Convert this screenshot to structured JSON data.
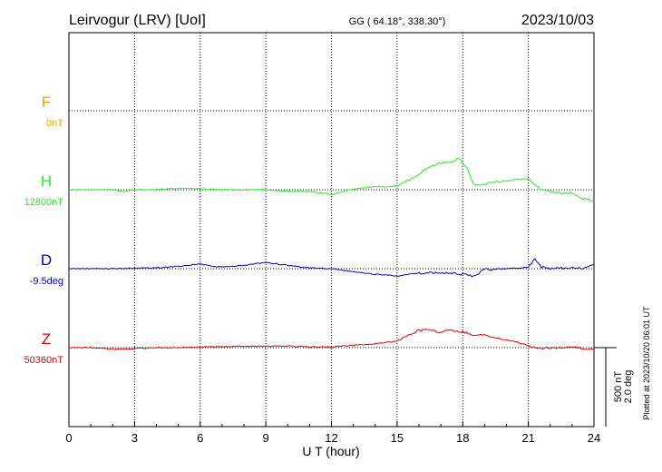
{
  "header": {
    "station": "Leirvogur (LRV)  [UoI]",
    "coords": "GG ( 64.18°, 338.30°)",
    "date": "2023/10/03"
  },
  "footer": {
    "plotted": "Plotted at 2023/10/20 06:01 UT"
  },
  "scale": {
    "nt": "500 nT",
    "deg": "2.0 deg"
  },
  "chart_data": {
    "type": "line",
    "xlabel": "U T (hour)",
    "ylabel": "",
    "xlim": [
      0,
      24
    ],
    "x_ticks": [
      "0",
      "3",
      "6",
      "9",
      "12",
      "15",
      "18",
      "21",
      "24"
    ],
    "grid": true,
    "scale_bar_nT": 500,
    "scale_bar_deg": 2.0,
    "series": [
      {
        "name": "F",
        "baseline_label": "0nT",
        "color": "#f0a000",
        "x": [],
        "values": []
      },
      {
        "name": "H",
        "baseline_label": "12800nT",
        "color": "#22ee22",
        "x": [
          0,
          1,
          2,
          2.5,
          3,
          4,
          5,
          6,
          7,
          8,
          9,
          10,
          11,
          12,
          13,
          14,
          14.5,
          15,
          15.5,
          16,
          16.5,
          17,
          17.5,
          17.8,
          18.2,
          18.5,
          19,
          19.5,
          20,
          20.5,
          21,
          21.3,
          21.6,
          22,
          22.5,
          23,
          23.5,
          24
        ],
        "values": [
          0,
          0,
          0,
          -10,
          0,
          0,
          10,
          5,
          0,
          0,
          0,
          -10,
          -10,
          -30,
          5,
          20,
          15,
          25,
          60,
          100,
          150,
          170,
          170,
          200,
          140,
          30,
          35,
          50,
          55,
          65,
          70,
          30,
          0,
          -10,
          -20,
          -20,
          -60,
          -70
        ]
      },
      {
        "name": "D",
        "baseline_label": "-9.5deg",
        "color": "#0000d0",
        "x": [
          0,
          2,
          4,
          5,
          6,
          6.5,
          7,
          8,
          9,
          9.5,
          10,
          11,
          12,
          13,
          14,
          15,
          16,
          17,
          18,
          18.5,
          19,
          20,
          21,
          21.3,
          21.6,
          22,
          23,
          23.5,
          24
        ],
        "values": [
          0,
          0,
          0.02,
          0.06,
          0.12,
          0.06,
          0.04,
          0.08,
          0.16,
          0.12,
          0.08,
          0.02,
          0,
          -0.08,
          -0.14,
          -0.18,
          -0.12,
          -0.1,
          -0.14,
          -0.2,
          -0.02,
          0,
          0.04,
          0.25,
          0.04,
          0,
          0.02,
          0,
          0.1
        ]
      },
      {
        "name": "Z",
        "baseline_label": "50360nT",
        "color": "#e00000",
        "x": [
          0,
          1,
          2,
          3,
          4,
          5,
          6,
          7,
          8,
          9,
          10,
          11,
          12,
          13,
          14,
          15,
          15.5,
          16,
          16.5,
          17,
          17.5,
          18,
          18.5,
          19,
          19.5,
          20,
          20.5,
          21,
          21.3,
          22,
          23,
          24
        ],
        "values": [
          0,
          0,
          -10,
          -5,
          0,
          0,
          5,
          5,
          10,
          10,
          10,
          5,
          5,
          15,
          25,
          40,
          80,
          110,
          110,
          100,
          110,
          100,
          80,
          80,
          60,
          50,
          35,
          15,
          -5,
          0,
          0,
          -10
        ]
      }
    ]
  }
}
